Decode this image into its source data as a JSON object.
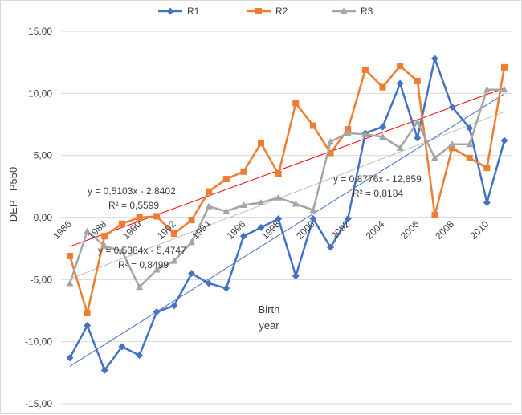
{
  "chart_data": {
    "type": "line",
    "title": "",
    "xlabel": "Birth year",
    "xlabel_lines": [
      "Birth",
      "year"
    ],
    "ylabel": "DEP - P550",
    "ylim": [
      -15,
      15
    ],
    "yticks": [
      -15,
      -10,
      -5,
      0,
      5,
      10,
      15
    ],
    "ytick_labels": [
      "-15,00",
      "-10,00",
      "-5,00",
      "0,00",
      "5,00",
      "10,00",
      "15,00"
    ],
    "xlim": [
      1986,
      2011
    ],
    "xticks": [
      1986,
      1988,
      1990,
      1992,
      1994,
      1996,
      1998,
      2000,
      2002,
      2004,
      2006,
      2008,
      2010
    ],
    "xtick_labels": [
      "1986",
      "1988",
      "1990",
      "1992",
      "1994",
      "1996",
      "1998",
      "2000",
      "2002",
      "2004",
      "2006",
      "2008",
      "2010"
    ],
    "grid": true,
    "legend_position": "top",
    "x": [
      1986,
      1987,
      1988,
      1989,
      1990,
      1991,
      1992,
      1993,
      1994,
      1995,
      1996,
      1997,
      1998,
      1999,
      2000,
      2001,
      2002,
      2003,
      2004,
      2005,
      2006,
      2007,
      2008,
      2009,
      2010,
      2011
    ],
    "series": [
      {
        "name": "R1",
        "color": "#4472c4",
        "marker": "diamond",
        "values": [
          -11.3,
          -8.7,
          -12.3,
          -10.4,
          -11.1,
          -7.6,
          -7.1,
          -4.5,
          -5.3,
          -5.7,
          -1.5,
          -0.8,
          -0.1,
          -4.7,
          -0.1,
          -2.4,
          -0.1,
          6.8,
          7.3,
          10.8,
          6.4,
          12.8,
          8.9,
          7.2,
          1.2,
          6.2
        ]
      },
      {
        "name": "R2",
        "color": "#ed7d31",
        "marker": "square",
        "values": [
          -3.1,
          -7.7,
          -1.5,
          -0.5,
          0.0,
          0.1,
          -1.3,
          -0.2,
          2.1,
          3.1,
          3.7,
          6.0,
          3.5,
          9.2,
          7.4,
          5.2,
          7.1,
          11.9,
          10.5,
          12.2,
          11.0,
          0.2,
          5.6,
          4.8,
          4.0,
          12.1
        ]
      },
      {
        "name": "R3",
        "color": "#a5a5a5",
        "marker": "triangle",
        "values": [
          -5.3,
          -1.1,
          -2.3,
          -2.7,
          -5.6,
          -4.2,
          -3.5,
          -2.0,
          0.9,
          0.5,
          1.0,
          1.2,
          1.6,
          1.1,
          0.6,
          6.1,
          6.8,
          6.7,
          6.5,
          5.6,
          7.7,
          4.8,
          5.9,
          5.9,
          10.3,
          10.3
        ]
      }
    ],
    "trendlines": [
      {
        "series": "R2",
        "color": "#ff0000",
        "slope": 0.5103,
        "intercept": -2.8402,
        "equation": "y = 0,5103x - 2,8402",
        "r2": "R² = 0,5599"
      },
      {
        "series": "R3",
        "color": "#bfbfbf",
        "slope": 0.5384,
        "intercept": -5.4747,
        "equation": "y = 0,5384x - 5,4747",
        "r2": "R² = 0,8499"
      },
      {
        "series": "R1",
        "color": "#4472c4",
        "slope": 0.8776,
        "intercept": -12.859,
        "equation": "y = 0,8776x - 12,859",
        "r2": "R² = 0,8184"
      }
    ]
  }
}
